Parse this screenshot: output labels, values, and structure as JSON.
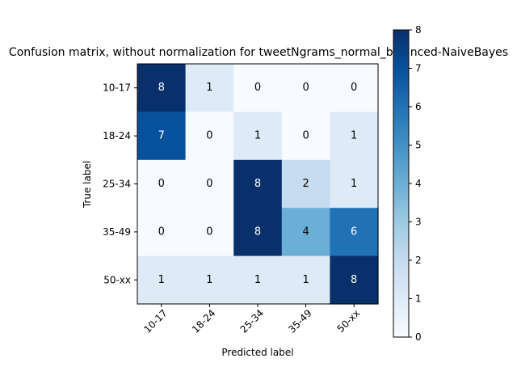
{
  "chart_data": {
    "type": "heatmap",
    "title": "Confusion matrix, without normalization for tweetNgrams_normal_balanced-NaiveBayes",
    "xlabel": "Predicted label",
    "ylabel": "True label",
    "row_labels": [
      "10-17",
      "18-24",
      "25-34",
      "35-49",
      "50-xx"
    ],
    "col_labels": [
      "10-17",
      "18-24",
      "25-34",
      "35-49",
      "50-xx"
    ],
    "matrix": [
      [
        8,
        1,
        0,
        0,
        0
      ],
      [
        7,
        0,
        1,
        0,
        1
      ],
      [
        0,
        0,
        8,
        2,
        1
      ],
      [
        0,
        0,
        8,
        4,
        6
      ],
      [
        1,
        1,
        1,
        1,
        8
      ]
    ],
    "colormap": "Blues",
    "value_range": [
      0,
      8
    ],
    "colorbar_ticks": [
      "0",
      "1",
      "2",
      "3",
      "4",
      "5",
      "6",
      "7",
      "8"
    ],
    "grid": false,
    "xtick_rotation_deg": 45
  }
}
